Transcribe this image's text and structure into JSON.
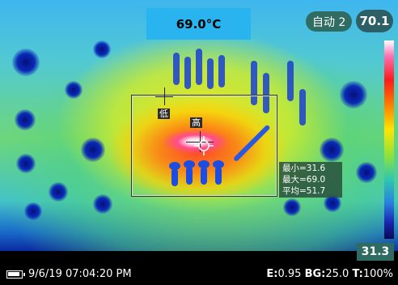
{
  "spot_temperature": "69.0°C",
  "mode_label": "自动 2",
  "scale": {
    "max": "70.1",
    "min": "31.3"
  },
  "markers": {
    "low": "低",
    "high": "高"
  },
  "roi_stats": {
    "min": "最小=31.6",
    "max": "最大=69.0",
    "avg": "平均=51.7"
  },
  "status": {
    "datetime": "9/6/19 07:04:20 PM",
    "emissivity_label": "E:",
    "emissivity": "0.95",
    "background_label": "BG:",
    "background": "25.0",
    "transmission_label": "T:",
    "transmission": "100%"
  },
  "colors": {
    "accent": "#2ab4ef",
    "pill_green": "#2f6d63",
    "hot_spot": "#ff4d8c"
  }
}
